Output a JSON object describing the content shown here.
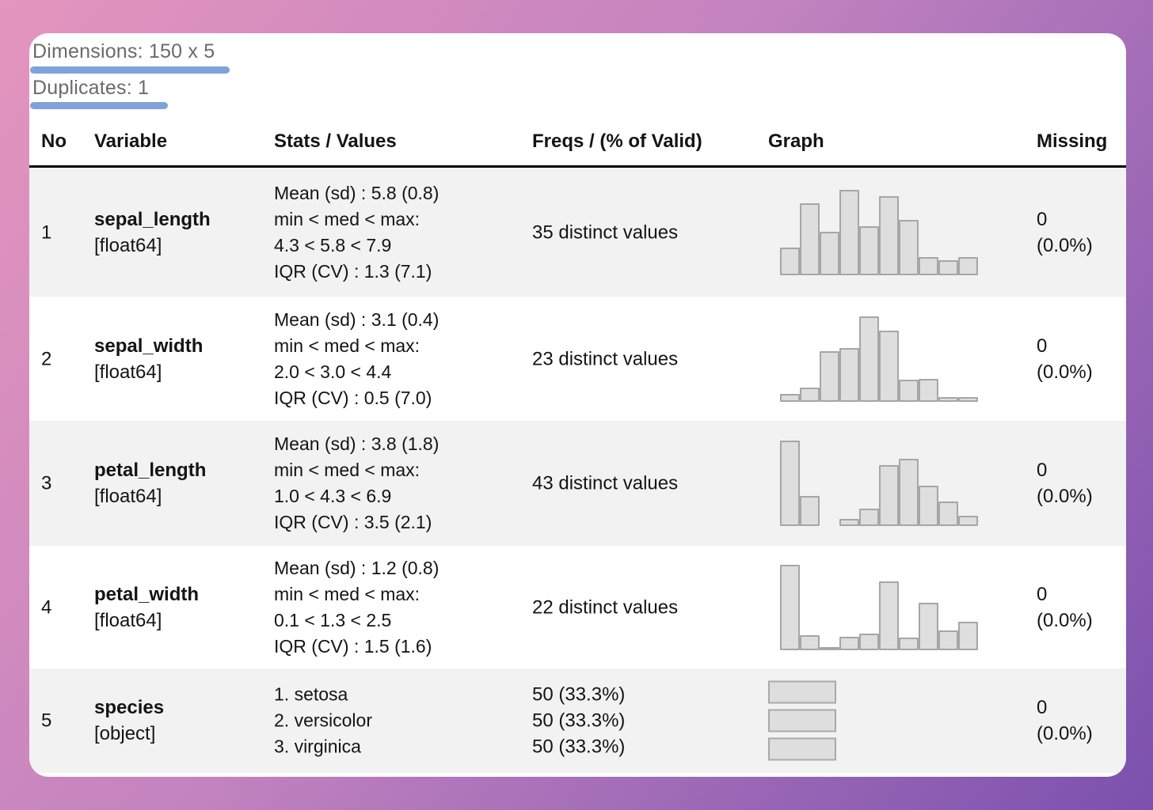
{
  "meta": {
    "dimensions": "Dimensions: 150 x 5",
    "duplicates": "Duplicates: 1"
  },
  "table": {
    "headers": {
      "no": "No",
      "variable": "Variable",
      "stats": "Stats / Values",
      "freqs": "Freqs / (% of Valid)",
      "graph": "Graph",
      "missing": "Missing"
    },
    "rows": [
      {
        "no": "1",
        "name": "sepal_length",
        "dtype": "[float64]",
        "stats": [
          "Mean (sd) : 5.8 (0.8)",
          "min < med < max:",
          "4.3 < 5.8 < 7.9",
          "IQR (CV) : 1.3 (7.1)"
        ],
        "freqs": [
          "35 distinct values"
        ],
        "missing": [
          "0",
          "(0.0%)"
        ],
        "histogram": [
          0.32,
          0.84,
          0.51,
          1.0,
          0.57,
          0.93,
          0.65,
          0.21,
          0.18,
          0.21
        ]
      },
      {
        "no": "2",
        "name": "sepal_width",
        "dtype": "[float64]",
        "stats": [
          "Mean (sd) : 3.1 (0.4)",
          "min < med < max:",
          "2.0 < 3.0 < 4.4",
          "IQR (CV) : 0.5 (7.0)"
        ],
        "freqs": [
          "23 distinct values"
        ],
        "missing": [
          "0",
          "(0.0%)"
        ],
        "histogram": [
          0.09,
          0.17,
          0.59,
          0.63,
          1.0,
          0.83,
          0.26,
          0.27,
          0.06,
          0.06
        ]
      },
      {
        "no": "3",
        "name": "petal_length",
        "dtype": "[float64]",
        "stats": [
          "Mean (sd) : 3.8 (1.8)",
          "min < med < max:",
          "1.0 < 4.3 < 6.9",
          "IQR (CV) : 3.5 (2.1)"
        ],
        "freqs": [
          "43 distinct values"
        ],
        "missing": [
          "0",
          "(0.0%)"
        ],
        "histogram": [
          1.0,
          0.35,
          0,
          0.08,
          0.2,
          0.71,
          0.79,
          0.47,
          0.29,
          0.12
        ]
      },
      {
        "no": "4",
        "name": "petal_width",
        "dtype": "[float64]",
        "stats": [
          "Mean (sd) : 1.2 (0.8)",
          "min < med < max:",
          "0.1 < 1.3 < 2.5",
          "IQR (CV) : 1.5 (1.6)"
        ],
        "freqs": [
          "22 distinct values"
        ],
        "missing": [
          "0",
          "(0.0%)"
        ],
        "histogram": [
          1.0,
          0.18,
          0.03,
          0.16,
          0.19,
          0.81,
          0.15,
          0.56,
          0.23,
          0.33
        ]
      },
      {
        "no": "5",
        "name": "species",
        "dtype": "[object]",
        "stats": [
          "1. setosa",
          "2. versicolor",
          "3. virginica"
        ],
        "freqs": [
          "50 (33.3%)",
          "50 (33.3%)",
          "50 (33.3%)"
        ],
        "missing": [
          "0",
          "(0.0%)"
        ],
        "catbars": [
          0.333,
          0.333,
          0.333
        ]
      }
    ]
  },
  "colors": {
    "underline_accent": "#7ea3d8",
    "bar_fill": "#dedede",
    "bar_border": "#a6a6a6",
    "row_stripe": "#f2f2f3",
    "header_rule": "#000000",
    "meta_text": "#6a6a6a",
    "bg_gradient_start": "#e495be",
    "bg_gradient_end": "#7b51ae"
  }
}
